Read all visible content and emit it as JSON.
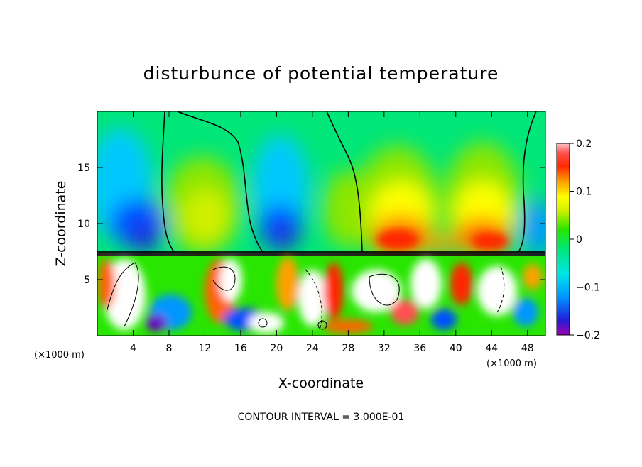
{
  "chart_data": {
    "type": "heatmap",
    "title": "disturbunce of potential temperature",
    "xlabel": "X-coordinate",
    "ylabel": "Z-coordinate",
    "x_unit_left": "(×1000 m)",
    "x_unit_right": "(×1000 m)",
    "xlim": [
      0,
      50
    ],
    "ylim": [
      0,
      20
    ],
    "xticks": [
      4,
      8,
      12,
      16,
      20,
      24,
      28,
      32,
      36,
      40,
      44,
      48
    ],
    "yticks": [
      5,
      10,
      15
    ],
    "colorbar": {
      "range": [
        -0.2,
        0.2
      ],
      "tick_labels": [
        "0.2",
        "0.1",
        "0",
        "−0.1",
        "−0.2"
      ],
      "tick_values": [
        0.2,
        0.1,
        0,
        -0.1,
        -0.2
      ],
      "colors": [
        "#9a00b0",
        "#6a00c8",
        "#2020d8",
        "#0050ff",
        "#0096ff",
        "#00c8ff",
        "#00e6e6",
        "#00e6b4",
        "#00e678",
        "#00e63c",
        "#28e600",
        "#8ce600",
        "#d2f000",
        "#ffff00",
        "#ffd200",
        "#ffa000",
        "#ff6400",
        "#ff2800",
        "#f00000",
        "#ff5050",
        "#ff9696",
        "#ffc8c8"
      ]
    },
    "contour_interval_text": "CONTOUR INTERVAL = 3.000E-01"
  }
}
